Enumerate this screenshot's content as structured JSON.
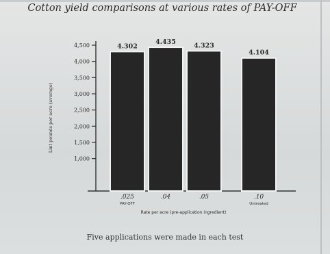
{
  "page": {
    "caption": "Five applications were made in each test"
  },
  "chart_data": {
    "type": "bar",
    "title": "Cotton yield comparisons at various rates of PAY-OFF",
    "xlabel": "Rate per acre (pre-application ingredient)",
    "ylabel": "Lint pounds per acre (average)",
    "categories": [
      ".025",
      ".04",
      ".05",
      ".10"
    ],
    "category_sublabels": [
      "PAY-OFF",
      "",
      "",
      "Untreated"
    ],
    "values": [
      4.302,
      4.435,
      4.323,
      4.104
    ],
    "value_labels": [
      "4.302",
      "4.435",
      "4.323",
      "4.104"
    ],
    "ylim": [
      0,
      4.5
    ],
    "y_ticks": [
      1.0,
      1.5,
      2.0,
      2.5,
      3.0,
      3.5,
      4.0,
      4.5
    ],
    "y_tick_labels": [
      "1,000",
      "1,500",
      "2,000",
      "2,500",
      "3,000",
      "3,500",
      "4,000",
      "4,500"
    ],
    "colors": {
      "bar": "#262626",
      "bar_border": "#f2f2f2",
      "axis": "#333333",
      "text": "#2a2a2a"
    },
    "grid": false,
    "legend": "none"
  }
}
